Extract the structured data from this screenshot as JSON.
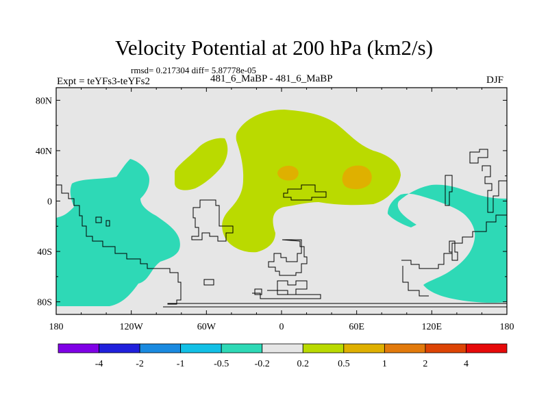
{
  "title": "Velocity Potential at 200 hPa (km2/s)",
  "subtitle_stats": "rmsd= 0.217304  diff= 5.87778e-05",
  "experiment_label": "Expt = teYFs3-teYFs2",
  "center_label": "481_6_MaBP - 481_6_MaBP",
  "season_label": "DJF",
  "map": {
    "background_color": "#e6e6e6",
    "lon_range": [
      -180,
      180
    ],
    "lat_range": [
      -90,
      90
    ],
    "x_ticks": [
      {
        "lon": -180,
        "label": "180"
      },
      {
        "lon": -120,
        "label": "120W"
      },
      {
        "lon": -60,
        "label": "60W"
      },
      {
        "lon": 0,
        "label": "0"
      },
      {
        "lon": 60,
        "label": "60E"
      },
      {
        "lon": 120,
        "label": "120E"
      },
      {
        "lon": 180,
        "label": "180"
      }
    ],
    "y_ticks": [
      {
        "lat": 80,
        "label": "80N"
      },
      {
        "lat": 40,
        "label": "40N"
      },
      {
        "lat": 0,
        "label": "0"
      },
      {
        "lat": -40,
        "label": "40S"
      },
      {
        "lat": -80,
        "label": "80S"
      }
    ],
    "regions": [
      {
        "name": "west-pacific-negative",
        "range": "-0.5 to -0.2",
        "color": "#2ed9b6"
      },
      {
        "name": "west-pacific-south-negative",
        "range": "-0.5 to -0.2",
        "color": "#2ed9b6"
      },
      {
        "name": "east-pacific-negative",
        "range": "-0.5 to -0.2",
        "color": "#2ed9b6"
      },
      {
        "name": "atlantic-positive",
        "range": "0.2 to 0.5",
        "color": "#bada00"
      },
      {
        "name": "africa-asia-positive",
        "range": "0.2 to 0.5",
        "color": "#bada00"
      },
      {
        "name": "maxima-1",
        "range": "0.5 to 1",
        "color": "#dfb000"
      },
      {
        "name": "maxima-2",
        "range": "0.5 to 1",
        "color": "#dfb000"
      }
    ]
  },
  "colorbar": {
    "colors": [
      "#7f00e6",
      "#2020dc",
      "#1a8ae0",
      "#12c0e6",
      "#2ed9b6",
      "#e6e6e6",
      "#bada00",
      "#dfb000",
      "#e27a0c",
      "#dd4405",
      "#e60a0a"
    ],
    "labels": [
      "-4",
      "-2",
      "-1",
      "-0.5",
      "-0.2",
      "0.2",
      "0.5",
      "1",
      "2",
      "4"
    ]
  }
}
